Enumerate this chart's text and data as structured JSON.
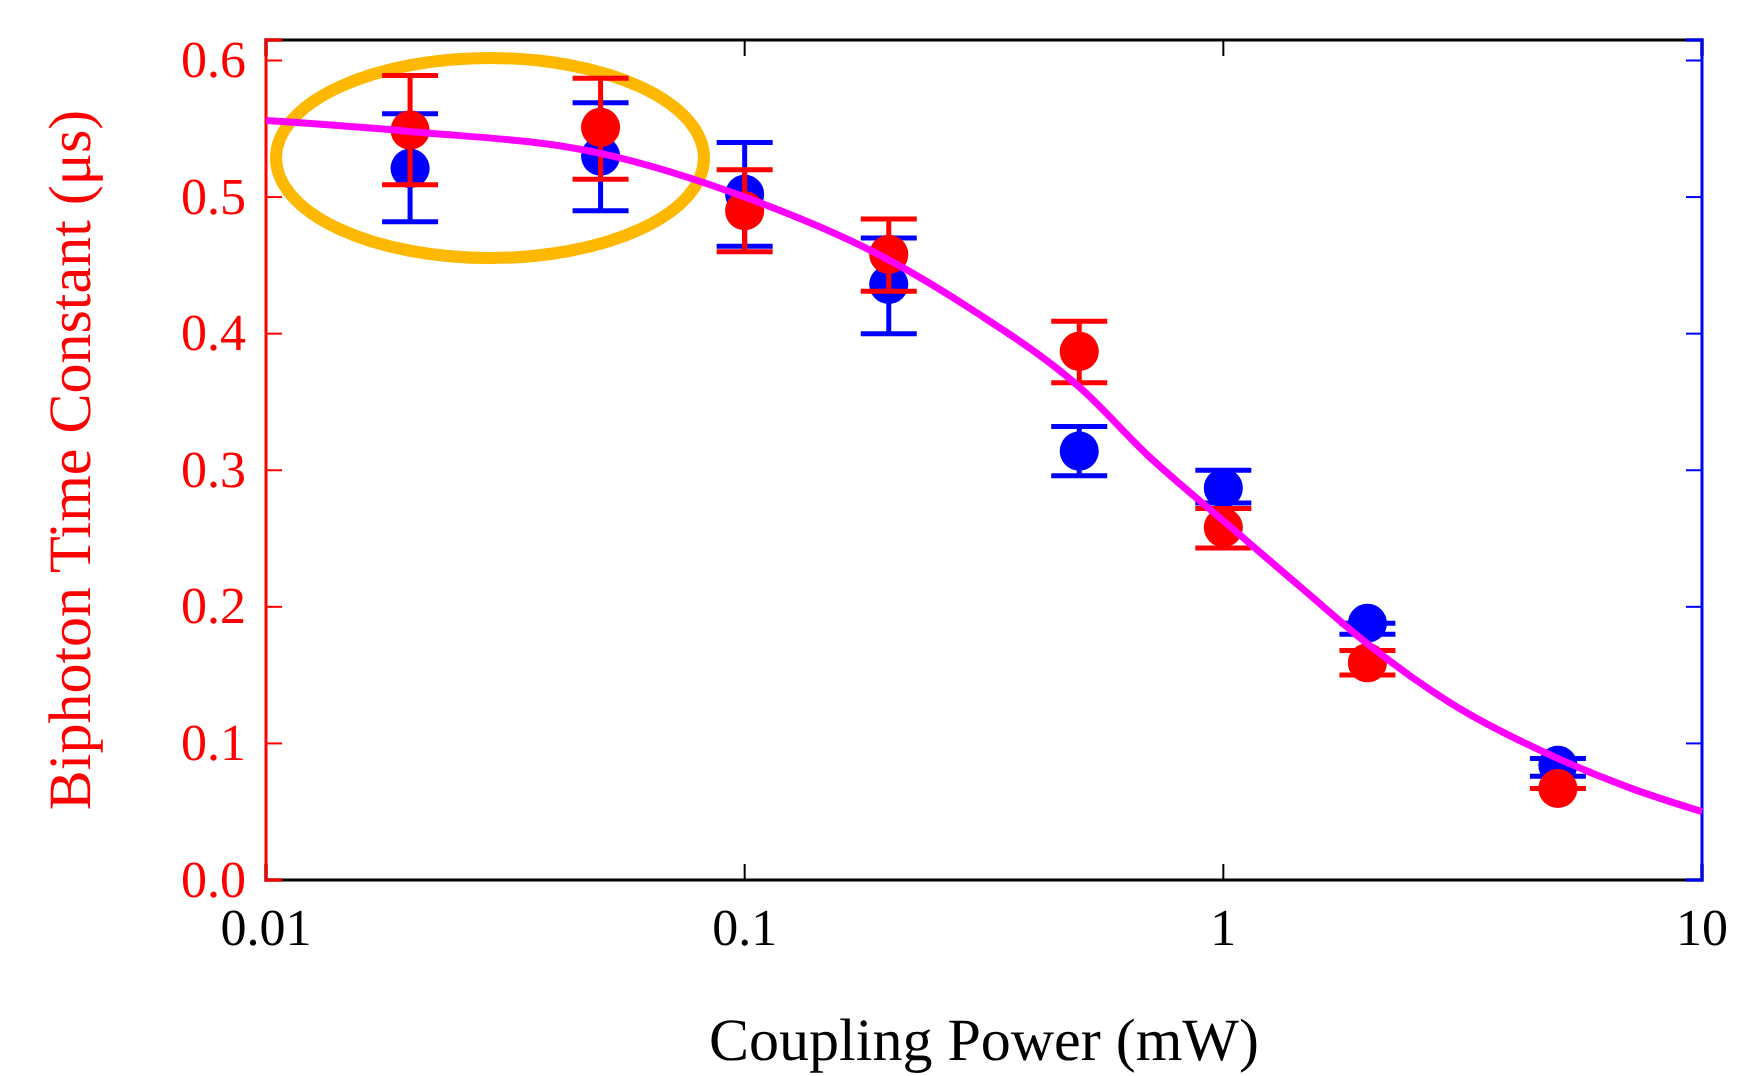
{
  "chart_data": {
    "type": "scatter",
    "xlabel": "Coupling Power (mW)",
    "ylabel": "Biphoton Time Constant (μs)",
    "x": [
      0.02,
      0.05,
      0.1,
      0.2,
      0.5,
      1,
      2,
      5
    ],
    "log": "x",
    "marker": "circle",
    "xlim": [
      0.01,
      10
    ],
    "xticks": [
      0.01,
      0.1,
      1,
      10
    ],
    "ylim": [
      0,
      0.615
    ],
    "yticks": [
      {
        "value": 0,
        "label": "0.0"
      },
      0.1,
      0.2,
      0.3,
      0.4,
      0.5,
      0.6
    ],
    "series": [
      {
        "color": "#0000ff",
        "values": [
          0.521,
          0.53,
          0.502,
          0.436,
          0.314,
          0.287,
          0.188,
          0.084
        ],
        "errors": [
          [
            0.482,
            0.561
          ],
          [
            0.49,
            0.569
          ],
          [
            0.464,
            0.54
          ],
          [
            0.4,
            0.47
          ],
          [
            0.296,
            0.332
          ],
          [
            0.276,
            0.3
          ],
          [
            0.18,
            0.188
          ],
          [
            0.076,
            0.089
          ]
        ]
      },
      {
        "color": "#ff0000",
        "values": [
          0.549,
          0.551,
          0.49,
          0.458,
          0.387,
          0.258,
          0.159,
          0.067
        ],
        "errors": [
          [
            0.509,
            0.589
          ],
          [
            0.513,
            0.587
          ],
          [
            0.46,
            0.52
          ],
          [
            0.431,
            0.484
          ],
          [
            0.364,
            0.409
          ],
          [
            0.243,
            0.272
          ],
          [
            0.15,
            0.168
          ],
          [
            0.067,
            0.067
          ]
        ]
      },
      {
        "type": "line",
        "color": "#ff00ff",
        "marker": "none",
        "x": [
          0.01,
          0.02,
          0.05,
          0.1,
          0.2,
          0.3,
          0.5,
          0.7,
          1,
          1.5,
          2,
          3,
          5,
          7,
          10
        ],
        "values": [
          0.556,
          0.548,
          0.532,
          0.5,
          0.454,
          0.417,
          0.361,
          0.31,
          0.263,
          0.21,
          0.173,
          0.129,
          0.089,
          0.068,
          0.05
        ]
      }
    ]
  }
}
